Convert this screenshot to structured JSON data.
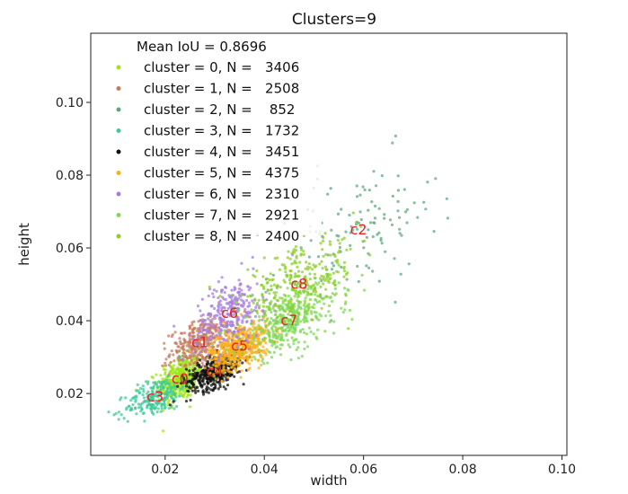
{
  "chart_data": {
    "type": "scatter",
    "title": "Clusters=9",
    "xlabel": "width",
    "ylabel": "height",
    "xlim": [
      0.005,
      0.101
    ],
    "ylim": [
      0.003,
      0.119
    ],
    "xticks": [
      {
        "value": 0.02,
        "label": "0.02"
      },
      {
        "value": 0.04,
        "label": "0.04"
      },
      {
        "value": 0.06,
        "label": "0.06"
      },
      {
        "value": 0.08,
        "label": "0.08"
      },
      {
        "value": 0.1,
        "label": "0.10"
      }
    ],
    "yticks": [
      {
        "value": 0.02,
        "label": "0.02"
      },
      {
        "value": 0.04,
        "label": "0.04"
      },
      {
        "value": 0.06,
        "label": "0.06"
      },
      {
        "value": 0.08,
        "label": "0.08"
      },
      {
        "value": 0.1,
        "label": "0.10"
      }
    ],
    "grid": false,
    "legend_position": "top-left",
    "legend_title": "Mean IoU = 0.8696",
    "series": [
      {
        "name": "cluster = 0, N =   3406",
        "label": "c0",
        "color": "#9ee61c",
        "n": 3406,
        "center": [
          0.023,
          0.024
        ],
        "spread": [
          0.0022,
          0.003
        ]
      },
      {
        "name": "cluster = 1, N =   2508",
        "label": "c1",
        "color": "#c97b5c",
        "n": 2508,
        "center": [
          0.027,
          0.034
        ],
        "spread": [
          0.003,
          0.003
        ]
      },
      {
        "name": "cluster = 2, N =    852",
        "label": "c2",
        "color": "#5fa87f",
        "n": 852,
        "center": [
          0.059,
          0.065
        ],
        "spread": [
          0.008,
          0.009
        ]
      },
      {
        "name": "cluster = 3, N =   1732",
        "label": "c3",
        "color": "#3ec99a",
        "n": 1732,
        "center": [
          0.018,
          0.019
        ],
        "spread": [
          0.003,
          0.0025
        ]
      },
      {
        "name": "cluster = 4, N =   3451",
        "label": "c4",
        "color": "#111111",
        "n": 3451,
        "center": [
          0.03,
          0.026
        ],
        "spread": [
          0.0028,
          0.0022
        ]
      },
      {
        "name": "cluster = 5, N =   4375",
        "label": "c5",
        "color": "#ffb019",
        "n": 4375,
        "center": [
          0.035,
          0.033
        ],
        "spread": [
          0.003,
          0.003
        ]
      },
      {
        "name": "cluster = 6, N =   2310",
        "label": "c6",
        "color": "#a77de0",
        "n": 2310,
        "center": [
          0.033,
          0.042
        ],
        "spread": [
          0.0035,
          0.0045
        ]
      },
      {
        "name": "cluster = 7, N =   2921",
        "label": "c7",
        "color": "#7ed957",
        "n": 2921,
        "center": [
          0.045,
          0.04
        ],
        "spread": [
          0.005,
          0.0045
        ]
      },
      {
        "name": "cluster = 8, N =   2400",
        "label": "c8",
        "color": "#8bcf2a",
        "n": 2400,
        "center": [
          0.047,
          0.05
        ],
        "spread": [
          0.006,
          0.005
        ]
      }
    ]
  }
}
